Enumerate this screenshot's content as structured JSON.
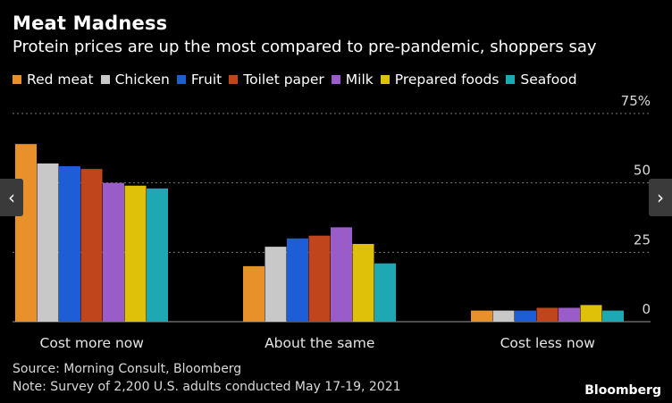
{
  "header": {
    "title": "Meat Madness",
    "subtitle": "Protein prices are up the most compared to pre-pandemic, shoppers say"
  },
  "chart_data": {
    "type": "bar",
    "title": "Meat Madness",
    "subtitle": "Protein prices are up the most compared to pre-pandemic, shoppers say",
    "categories": [
      "Cost more now",
      "About the same",
      "Cost less now"
    ],
    "series": [
      {
        "name": "Red meat",
        "color": "#e8902a",
        "values": [
          64,
          20,
          4
        ]
      },
      {
        "name": "Chicken",
        "color": "#c8c8c8",
        "values": [
          57,
          27,
          4
        ]
      },
      {
        "name": "Fruit",
        "color": "#1d5ed6",
        "values": [
          56,
          30,
          4
        ]
      },
      {
        "name": "Toilet paper",
        "color": "#c0441c",
        "values": [
          55,
          31,
          5
        ]
      },
      {
        "name": "Milk",
        "color": "#9a5cc8",
        "values": [
          50,
          34,
          5
        ]
      },
      {
        "name": "Prepared foods",
        "color": "#e0c10a",
        "values": [
          49,
          28,
          6
        ]
      },
      {
        "name": "Seafood",
        "color": "#1ea8b4",
        "values": [
          48,
          21,
          4
        ]
      }
    ],
    "yticks": [
      0,
      25,
      50,
      75
    ],
    "ytick_labels": [
      "0",
      "25",
      "50",
      "75%"
    ],
    "ylim": [
      0,
      75
    ],
    "xlabel": "",
    "ylabel": "",
    "grid": true,
    "legend": "top-left"
  },
  "footer": {
    "source": "Source: Morning Consult, Bloomberg",
    "note": "Note: Survey of 2,200 U.S. adults conducted May 17-19, 2021",
    "brand": "Bloomberg"
  },
  "nav": {
    "prev_icon": "chevron-left-icon",
    "next_icon": "chevron-right-icon",
    "prev_glyph": "‹",
    "next_glyph": "›"
  }
}
